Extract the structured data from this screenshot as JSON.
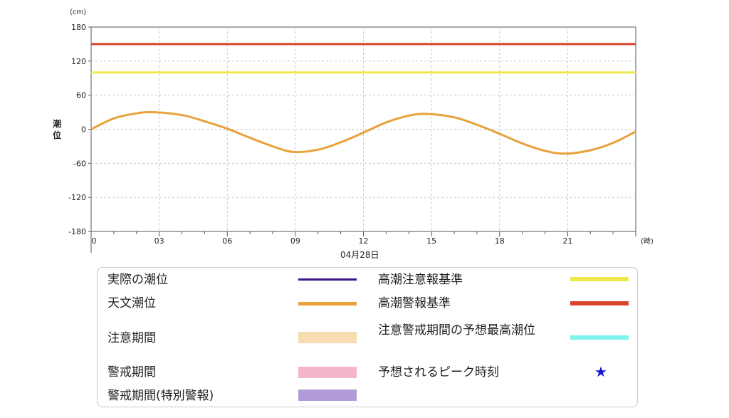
{
  "header": {
    "unit_y": "(cm)",
    "unit_x": "(時)",
    "ylabel": "潮位",
    "date": "04月28日"
  },
  "chart_data": {
    "type": "line",
    "xlim": [
      0,
      24
    ],
    "ylim": [
      -180,
      180
    ],
    "yticks": [
      180,
      120,
      60,
      0,
      -60,
      -120,
      -180
    ],
    "xticks": [
      0,
      3,
      6,
      9,
      12,
      15,
      18,
      21
    ],
    "xtick_labels": [
      "0",
      "03",
      "06",
      "09",
      "12",
      "15",
      "18",
      "21"
    ],
    "grid": true,
    "series": [
      {
        "name": "天文潮位",
        "color": "#e9a23b",
        "x": [
          0,
          1,
          2,
          2.8,
          4,
          5,
          6,
          7,
          8,
          8.9,
          10,
          11,
          12,
          13,
          14,
          14.8,
          16,
          17,
          18,
          19,
          20,
          20.9,
          22,
          23,
          24
        ],
        "y": [
          0,
          19,
          28,
          30,
          25,
          14,
          1,
          -15,
          -30,
          -40,
          -36,
          -23,
          -6,
          12,
          24,
          27,
          21,
          8,
          -8,
          -25,
          -38,
          -43,
          -37,
          -24,
          -4
        ]
      }
    ],
    "reference_lines": [
      {
        "name": "高潮注意報基準",
        "value": 100,
        "color": "#eee84a"
      },
      {
        "name": "高潮警報基準",
        "value": 150,
        "color": "#d9462c"
      }
    ]
  },
  "legend": {
    "items": [
      {
        "label": "実際の潮位",
        "swatch": "line",
        "color": "#3b1585"
      },
      {
        "label": "天文潮位",
        "swatch": "line",
        "color": "#e9a23b"
      },
      {
        "label": "注意期間",
        "swatch": "box",
        "color": "#f8dcb2"
      },
      {
        "label": "警戒期間",
        "swatch": "box",
        "color": "#f3b4cc"
      },
      {
        "label": "警戒期間(特別警報)",
        "swatch": "box",
        "color": "#b09ad8"
      },
      {
        "label": "高潮注意報基準",
        "swatch": "line",
        "color": "#eee84a"
      },
      {
        "label": "高潮警報基準",
        "swatch": "line",
        "color": "#d9462c"
      },
      {
        "label": "注意警戒期間の予想最高潮位",
        "swatch": "line",
        "color": "#7cf3ee"
      },
      {
        "label": "予想されるピーク時刻",
        "swatch": "star",
        "color": "#1515d6",
        "symbol": "★"
      }
    ]
  }
}
